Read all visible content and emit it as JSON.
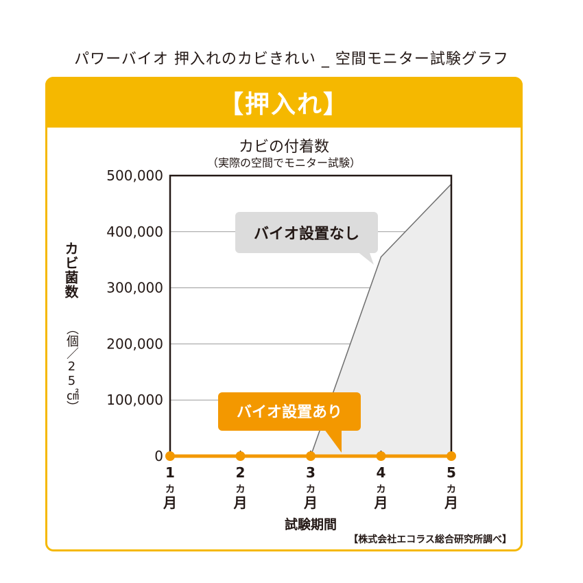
{
  "page": {
    "title": "パワーバイオ 押入れのカビきれい _ 空間モニター試験グラフ",
    "header": "【押入れ】",
    "source": "【株式会社エコラス総合研究所調べ】"
  },
  "colors": {
    "accent": "#F5B800",
    "series_with_bio": "#F39800",
    "series_without_bio_line": "#6E6E6E",
    "series_without_bio_fill": "#EDEDED",
    "callout_gray": "#DCDCDC"
  },
  "chart_data": {
    "type": "line",
    "title": "カビの付着数",
    "subtitle": "（実際の空間でモニター試験）",
    "xlabel": "試験期間",
    "ylabel": "カビ菌数",
    "ylabel_unit": "（個／25㎠）",
    "categories": [
      "1カ月",
      "2カ月",
      "3カ月",
      "4カ月",
      "5カ月"
    ],
    "x": [
      1,
      2,
      3,
      4,
      5
    ],
    "ylim": [
      0,
      500000
    ],
    "yticks": [
      0,
      100000,
      200000,
      300000,
      400000,
      500000
    ],
    "ytick_labels": [
      "0",
      "100,000",
      "200,000",
      "300,000",
      "400,000",
      "500,000"
    ],
    "grid": true,
    "series": [
      {
        "name": "バイオ設置なし",
        "x": [
          1,
          2,
          3,
          4,
          5
        ],
        "values": [
          0,
          0,
          0,
          355000,
          485000
        ]
      },
      {
        "name": "バイオ設置あり",
        "x": [
          1,
          2,
          3,
          4,
          5
        ],
        "values": [
          0,
          0,
          0,
          0,
          0
        ]
      }
    ]
  }
}
